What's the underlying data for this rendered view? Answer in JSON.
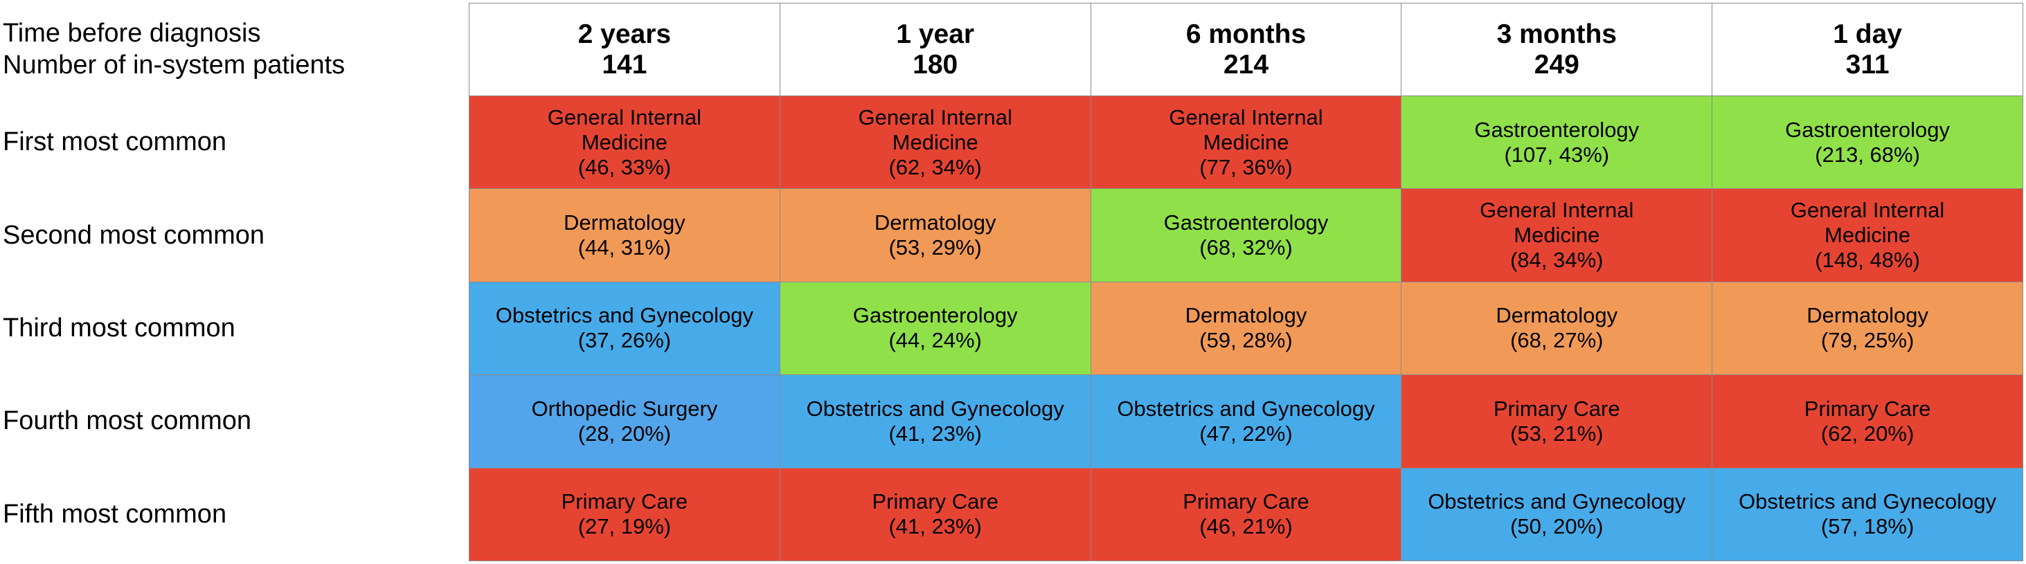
{
  "chart_data": {
    "type": "table",
    "header_labels": [
      "Time before diagnosis",
      "Number of in-system patients"
    ],
    "row_labels": [
      "First most common",
      "Second most common",
      "Third most common",
      "Fourth most common",
      "Fifth most common"
    ],
    "columns": [
      {
        "time": "2 years",
        "patients": "141",
        "cells": [
          {
            "line1": "General Internal",
            "line2": "Medicine",
            "value": "(46, 33%)",
            "color": "#e64433"
          },
          {
            "line1": "Dermatology",
            "line2": "",
            "value": "(44, 31%)",
            "color": "#f19a57"
          },
          {
            "line1": "Obstetrics and Gynecology",
            "line2": "",
            "value": "(37, 26%)",
            "color": "#47abea"
          },
          {
            "line1": "Orthopedic Surgery",
            "line2": "",
            "value": "(28, 20%)",
            "color": "#52a5ea"
          },
          {
            "line1": "Primary Care",
            "line2": "",
            "value": "(27, 19%)",
            "color": "#e64433"
          }
        ]
      },
      {
        "time": "1 year",
        "patients": "180",
        "cells": [
          {
            "line1": "General Internal",
            "line2": "Medicine",
            "value": "(62, 34%)",
            "color": "#e64433"
          },
          {
            "line1": "Dermatology",
            "line2": "",
            "value": "(53, 29%)",
            "color": "#f19a57"
          },
          {
            "line1": "Gastroenterology",
            "line2": "",
            "value": "(44, 24%)",
            "color": "#90e149"
          },
          {
            "line1": "Obstetrics and Gynecology",
            "line2": "",
            "value": "(41, 23%)",
            "color": "#47abea"
          },
          {
            "line1": "Primary Care",
            "line2": "",
            "value": "(41, 23%)",
            "color": "#e64433"
          }
        ]
      },
      {
        "time": "6 months",
        "patients": "214",
        "cells": [
          {
            "line1": "General Internal",
            "line2": "Medicine",
            "value": "(77, 36%)",
            "color": "#e64433"
          },
          {
            "line1": "Gastroenterology",
            "line2": "",
            "value": "(68, 32%)",
            "color": "#90e149"
          },
          {
            "line1": "Dermatology",
            "line2": "",
            "value": "(59, 28%)",
            "color": "#f19a57"
          },
          {
            "line1": "Obstetrics and Gynecology",
            "line2": "",
            "value": "(47, 22%)",
            "color": "#47abea"
          },
          {
            "line1": "Primary Care",
            "line2": "",
            "value": "(46, 21%)",
            "color": "#e64433"
          }
        ]
      },
      {
        "time": "3 months",
        "patients": "249",
        "cells": [
          {
            "line1": "Gastroenterology",
            "line2": "",
            "value": "(107, 43%)",
            "color": "#90e149"
          },
          {
            "line1": "General Internal",
            "line2": "Medicine",
            "value": "(84, 34%)",
            "color": "#e64433"
          },
          {
            "line1": "Dermatology",
            "line2": "",
            "value": "(68, 27%)",
            "color": "#f19a57"
          },
          {
            "line1": "Primary Care",
            "line2": "",
            "value": "(53, 21%)",
            "color": "#e64433"
          },
          {
            "line1": "Obstetrics and Gynecology",
            "line2": "",
            "value": "(50, 20%)",
            "color": "#47abea"
          }
        ]
      },
      {
        "time": "1 day",
        "patients": "311",
        "cells": [
          {
            "line1": "Gastroenterology",
            "line2": "",
            "value": "(213, 68%)",
            "color": "#90e149"
          },
          {
            "line1": "General Internal",
            "line2": "Medicine",
            "value": "(148, 48%)",
            "color": "#e64433"
          },
          {
            "line1": "Dermatology",
            "line2": "",
            "value": "(79, 25%)",
            "color": "#f19a57"
          },
          {
            "line1": "Primary Care",
            "line2": "",
            "value": "(62, 20%)",
            "color": "#e64433"
          },
          {
            "line1": "Obstetrics and Gynecology",
            "line2": "",
            "value": "(57, 18%)",
            "color": "#47abea"
          }
        ]
      }
    ]
  }
}
